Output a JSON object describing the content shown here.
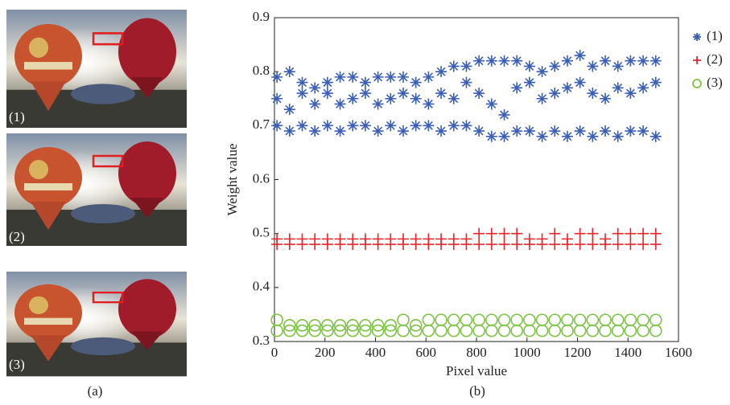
{
  "panels": [
    {
      "label": "(1)"
    },
    {
      "label": "(2)"
    },
    {
      "label": "(3)"
    }
  ],
  "captions": [
    "(a)",
    "(b)"
  ],
  "chart_data": {
    "type": "scatter",
    "xlabel": "Pixel value",
    "ylabel": "Weight value",
    "xlim": [
      0,
      1600
    ],
    "ylim": [
      0.3,
      0.9
    ],
    "xticks": [
      0,
      200,
      400,
      600,
      800,
      1000,
      1200,
      1400,
      1600
    ],
    "yticks": [
      0.3,
      0.4,
      0.5,
      0.6,
      0.7,
      0.8,
      0.9
    ],
    "legend": "outside-right",
    "series": [
      {
        "name": "(1)",
        "color": "#3a5fb5",
        "marker": "star",
        "x": [
          10,
          60,
          110,
          160,
          210,
          260,
          310,
          360,
          410,
          460,
          510,
          560,
          610,
          660,
          710,
          760,
          810,
          860,
          910,
          960,
          1010,
          1060,
          1110,
          1160,
          1210,
          1260,
          1310,
          1360,
          1410,
          1460,
          1510,
          10,
          60,
          110,
          160,
          210,
          260,
          310,
          360,
          410,
          460,
          510,
          560,
          610,
          660,
          710,
          760,
          810,
          860,
          910,
          960,
          1010,
          1060,
          1110,
          1160,
          1210,
          1260,
          1310,
          1360,
          1410,
          1460,
          1510,
          10,
          60,
          110,
          160,
          210,
          260,
          310,
          360,
          410,
          460,
          510,
          560,
          610,
          660,
          710,
          760,
          810,
          860,
          910,
          960,
          1010,
          1060,
          1110,
          1160,
          1210,
          1260,
          1310,
          1360,
          1410,
          1460,
          1510
        ],
        "values": [
          0.79,
          0.8,
          0.78,
          0.77,
          0.78,
          0.79,
          0.79,
          0.78,
          0.79,
          0.79,
          0.79,
          0.78,
          0.79,
          0.8,
          0.81,
          0.81,
          0.82,
          0.82,
          0.82,
          0.82,
          0.81,
          0.8,
          0.81,
          0.82,
          0.83,
          0.81,
          0.82,
          0.81,
          0.82,
          0.82,
          0.82,
          0.75,
          0.73,
          0.76,
          0.74,
          0.76,
          0.74,
          0.75,
          0.76,
          0.74,
          0.75,
          0.76,
          0.75,
          0.74,
          0.76,
          0.75,
          0.78,
          0.76,
          0.74,
          0.72,
          0.77,
          0.78,
          0.75,
          0.76,
          0.77,
          0.78,
          0.76,
          0.75,
          0.77,
          0.76,
          0.77,
          0.78,
          0.7,
          0.69,
          0.7,
          0.69,
          0.7,
          0.69,
          0.7,
          0.7,
          0.69,
          0.7,
          0.69,
          0.7,
          0.7,
          0.69,
          0.7,
          0.7,
          0.69,
          0.68,
          0.68,
          0.69,
          0.69,
          0.68,
          0.69,
          0.68,
          0.69,
          0.68,
          0.69,
          0.68,
          0.69,
          0.69,
          0.68
        ]
      },
      {
        "name": "(2)",
        "color": "#e8262a",
        "marker": "plus",
        "x": [
          10,
          60,
          110,
          160,
          210,
          260,
          310,
          360,
          410,
          460,
          510,
          560,
          610,
          660,
          710,
          760,
          810,
          860,
          910,
          960,
          1010,
          1060,
          1110,
          1160,
          1210,
          1260,
          1310,
          1360,
          1410,
          1460,
          1510,
          10,
          60,
          110,
          160,
          210,
          260,
          310,
          360,
          410,
          460,
          510,
          560,
          610,
          660,
          710,
          760,
          810,
          860,
          910,
          960,
          1010,
          1060,
          1110,
          1160,
          1210,
          1260,
          1310,
          1360,
          1410,
          1460,
          1510
        ],
        "values": [
          0.49,
          0.49,
          0.49,
          0.49,
          0.49,
          0.49,
          0.49,
          0.49,
          0.49,
          0.49,
          0.49,
          0.49,
          0.49,
          0.49,
          0.49,
          0.49,
          0.5,
          0.5,
          0.5,
          0.5,
          0.49,
          0.49,
          0.5,
          0.49,
          0.5,
          0.5,
          0.49,
          0.5,
          0.5,
          0.5,
          0.5,
          0.48,
          0.48,
          0.48,
          0.48,
          0.48,
          0.48,
          0.48,
          0.48,
          0.48,
          0.48,
          0.48,
          0.48,
          0.48,
          0.48,
          0.48,
          0.48,
          0.48,
          0.48,
          0.48,
          0.48,
          0.48,
          0.48,
          0.48,
          0.48,
          0.48,
          0.48,
          0.48,
          0.48,
          0.48,
          0.48,
          0.48
        ]
      },
      {
        "name": "(3)",
        "color": "#7cc243",
        "marker": "circle",
        "x": [
          10,
          60,
          110,
          160,
          210,
          260,
          310,
          360,
          410,
          460,
          510,
          560,
          610,
          660,
          710,
          760,
          810,
          860,
          910,
          960,
          1010,
          1060,
          1110,
          1160,
          1210,
          1260,
          1310,
          1360,
          1410,
          1460,
          1510,
          10,
          60,
          110,
          160,
          210,
          260,
          310,
          360,
          410,
          460,
          510,
          560,
          610,
          660,
          710,
          760,
          810,
          860,
          910,
          960,
          1010,
          1060,
          1110,
          1160,
          1210,
          1260,
          1310,
          1360,
          1410,
          1460,
          1510
        ],
        "values": [
          0.34,
          0.33,
          0.33,
          0.33,
          0.33,
          0.33,
          0.33,
          0.33,
          0.33,
          0.33,
          0.34,
          0.33,
          0.34,
          0.34,
          0.34,
          0.34,
          0.34,
          0.34,
          0.34,
          0.34,
          0.34,
          0.34,
          0.34,
          0.34,
          0.34,
          0.34,
          0.34,
          0.34,
          0.34,
          0.34,
          0.34,
          0.32,
          0.32,
          0.32,
          0.32,
          0.32,
          0.32,
          0.32,
          0.32,
          0.32,
          0.32,
          0.32,
          0.32,
          0.32,
          0.32,
          0.32,
          0.32,
          0.32,
          0.32,
          0.32,
          0.32,
          0.32,
          0.32,
          0.32,
          0.32,
          0.32,
          0.32,
          0.32,
          0.32,
          0.32,
          0.32,
          0.32
        ]
      }
    ]
  }
}
